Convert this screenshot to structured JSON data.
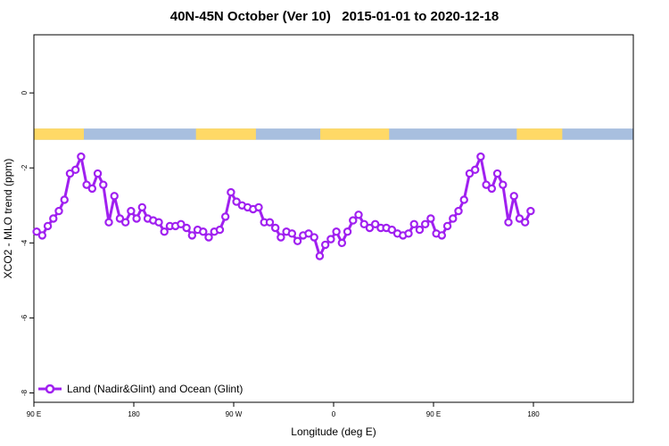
{
  "chart_data": {
    "type": "line",
    "title": "40N-45N October (Ver 10)   2015-01-01 to 2020-12-18",
    "xlabel": "Longitude (deg E)",
    "ylabel": "XCO2 - MLO trend (ppm)",
    "xlim": [
      90,
      630
    ],
    "ylim": [
      -8.25,
      1.55
    ],
    "x_ticks": [
      {
        "value": 90,
        "label": "90 E"
      },
      {
        "value": 180,
        "label": "180"
      },
      {
        "value": 270,
        "label": "90 W"
      },
      {
        "value": 360,
        "label": "0"
      },
      {
        "value": 450,
        "label": "90 E"
      },
      {
        "value": 540,
        "label": "180"
      }
    ],
    "y_ticks": [
      {
        "value": 0,
        "label": "0"
      },
      {
        "value": -2,
        "label": "-2"
      },
      {
        "value": -4,
        "label": "-4"
      },
      {
        "value": -6,
        "label": "-6"
      },
      {
        "value": -8,
        "label": "-8"
      }
    ],
    "grid": false,
    "legend_position": "bottom-left",
    "series": [
      {
        "name": "Land (Nadir&Glint) and Ocean (Glint)",
        "color": "#a020f0",
        "marker": "open-circle",
        "x": [
          92.5,
          97.5,
          102.5,
          107.5,
          112.5,
          117.5,
          122.5,
          127.5,
          132.5,
          137.5,
          142.5,
          147.5,
          152.5,
          157.5,
          162.5,
          167.5,
          172.5,
          177.5,
          182.5,
          187.5,
          192.5,
          197.5,
          202.5,
          207.5,
          212.5,
          217.5,
          222.5,
          227.5,
          232.5,
          237.5,
          242.5,
          247.5,
          252.5,
          257.5,
          262.5,
          267.5,
          272.5,
          277.5,
          282.5,
          287.5,
          292.5,
          297.5,
          302.5,
          307.5,
          312.5,
          317.5,
          322.5,
          327.5,
          332.5,
          337.5,
          342.5,
          347.5,
          352.5,
          357.5,
          362.5,
          367.5,
          372.5,
          377.5,
          382.5,
          387.5,
          392.5,
          397.5,
          402.5,
          407.5,
          412.5,
          417.5,
          422.5,
          427.5,
          432.5,
          437.5,
          442.5,
          447.5,
          452.5,
          457.5,
          462.5,
          467.5,
          472.5,
          477.5,
          482.5,
          487.5,
          492.5,
          497.5,
          502.5,
          507.5,
          512.5,
          517.5,
          522.5,
          527.5,
          532.5,
          537.5
        ],
        "y": [
          -3.7,
          -3.8,
          -3.55,
          -3.35,
          -3.15,
          -2.85,
          -2.15,
          -2.05,
          -1.7,
          -2.45,
          -2.55,
          -2.15,
          -2.45,
          -3.45,
          -2.75,
          -3.35,
          -3.45,
          -3.15,
          -3.35,
          -3.05,
          -3.35,
          -3.4,
          -3.45,
          -3.7,
          -3.55,
          -3.55,
          -3.5,
          -3.6,
          -3.8,
          -3.65,
          -3.7,
          -3.85,
          -3.7,
          -3.65,
          -3.3,
          -2.65,
          -2.9,
          -3.0,
          -3.05,
          -3.1,
          -3.05,
          -3.45,
          -3.45,
          -3.6,
          -3.85,
          -3.7,
          -3.75,
          -3.95,
          -3.8,
          -3.75,
          -3.85,
          -4.35,
          -4.05,
          -3.9,
          -3.7,
          -4.0,
          -3.7,
          -3.4,
          -3.25,
          -3.5,
          -3.6,
          -3.5,
          -3.6,
          -3.6,
          -3.65,
          -3.75,
          -3.8,
          -3.75,
          -3.5,
          -3.65,
          -3.5,
          -3.35,
          -3.75,
          -3.8,
          -3.55,
          -3.35,
          -3.15,
          -2.85,
          -2.15,
          -2.05,
          -1.7,
          -2.45,
          -2.55,
          -2.15,
          -2.45,
          -3.45,
          -2.75,
          -3.35,
          -3.45,
          -3.15
        ]
      }
    ],
    "surface_strip": {
      "y_range": [
        -1.25,
        -0.95
      ],
      "colors": {
        "land": "#ffd966",
        "ocean": "#a8bfdf"
      },
      "land_segments": [
        [
          90,
          135
        ],
        [
          236,
          290
        ],
        [
          348,
          410
        ],
        [
          525,
          566
        ]
      ]
    }
  }
}
